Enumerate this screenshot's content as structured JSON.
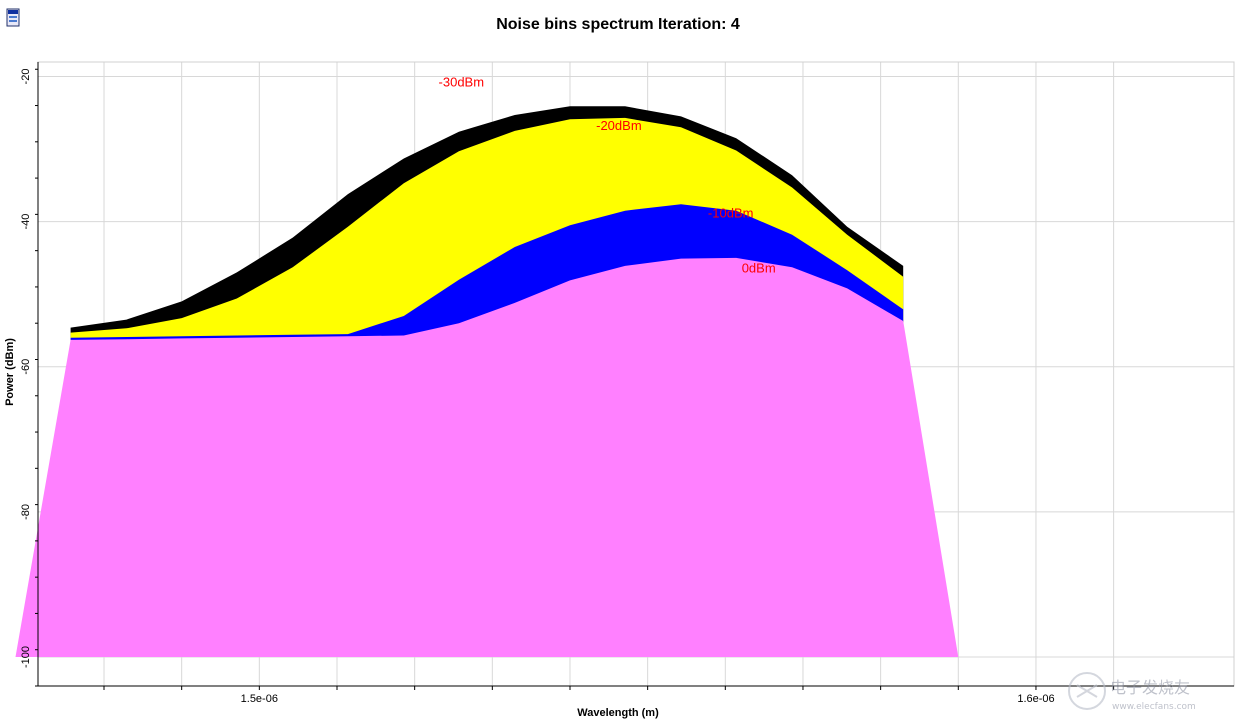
{
  "window": {
    "icon": "app-window-icon"
  },
  "watermark": {
    "text": "电子发烧友",
    "sub": "www.elecfans.com"
  },
  "chart_data": {
    "type": "area",
    "title": "Noise bins spectrum Iteration: 4",
    "xlabel": "Wavelength (m)",
    "ylabel": "Power (dBm)",
    "xlim": [
      1.4715e-06,
      1.6255e-06
    ],
    "ylim": [
      -104,
      -18
    ],
    "x_tick_labels": [
      {
        "value": 1.5e-06,
        "label": "1.5e-06"
      },
      {
        "value": 1.6e-06,
        "label": "1.6e-06"
      }
    ],
    "y_ticks": [
      -20,
      -40,
      -60,
      -80,
      -100
    ],
    "x_grid": [
      1.48e-06,
      1.49e-06,
      1.5e-06,
      1.51e-06,
      1.52e-06,
      1.53e-06,
      1.54e-06,
      1.55e-06,
      1.56e-06,
      1.57e-06,
      1.58e-06,
      1.59e-06,
      1.6e-06,
      1.61e-06
    ],
    "grid": true,
    "x": [
      1.4686e-06,
      1.4757e-06,
      1.4829e-06,
      1.49e-06,
      1.4971e-06,
      1.5043e-06,
      1.5114e-06,
      1.5186e-06,
      1.5257e-06,
      1.5329e-06,
      1.54e-06,
      1.5471e-06,
      1.5543e-06,
      1.5614e-06,
      1.5686e-06,
      1.5757e-06,
      1.5829e-06,
      1.59e-06,
      1.5971e-06,
      1.6043e-06,
      1.6114e-06
    ],
    "series": [
      {
        "name": "-30dBm",
        "color": "#000000",
        "values": [
          null,
          -54.6,
          -53.5,
          -51.0,
          -47.0,
          -42.2,
          -36.2,
          -31.3,
          -27.6,
          -25.3,
          -24.1,
          -24.1,
          -25.5,
          -28.5,
          -33.6,
          -40.7,
          -46.1,
          null,
          null,
          null,
          null
        ]
      },
      {
        "name": "-20dBm",
        "color": "#ffff00",
        "values": [
          null,
          -55.3,
          -54.7,
          -53.3,
          -50.6,
          -46.3,
          -40.7,
          -34.7,
          -30.3,
          -27.5,
          -25.9,
          -25.7,
          -27.0,
          -30.2,
          -35.3,
          -41.8,
          -47.6,
          null,
          null,
          null,
          null
        ]
      },
      {
        "name": "-10dBm",
        "color": "#0000ff",
        "values": [
          null,
          -56.0,
          -55.9,
          -55.8,
          -55.7,
          -55.6,
          -55.5,
          -53.0,
          -48.0,
          -43.5,
          -40.5,
          -38.5,
          -37.6,
          -38.5,
          -41.8,
          -46.7,
          -52.1,
          null,
          null,
          null,
          null
        ]
      },
      {
        "name": "0dBm",
        "color": "#ff80ff",
        "values": [
          -100,
          -56.3,
          -56.2,
          -56.1,
          -56.0,
          -55.9,
          -55.8,
          -55.7,
          -54.0,
          -51.2,
          -48.1,
          -46.1,
          -45.1,
          -45.0,
          -46.3,
          -49.2,
          -53.7,
          -100,
          -100,
          -100,
          -100
        ]
      }
    ],
    "annotations": [
      {
        "text": "-30dBm",
        "x": 1.526e-06,
        "y": -21.4,
        "color": "#ff0000"
      },
      {
        "text": "-20dBm",
        "x": 1.5463e-06,
        "y": -27.4,
        "color": "#ff0000"
      },
      {
        "text": "-10dBm",
        "x": 1.5607e-06,
        "y": -39.4,
        "color": "#ff0000"
      },
      {
        "text": "0dBm",
        "x": 1.5643e-06,
        "y": -47.0,
        "color": "#ff0000"
      }
    ]
  }
}
